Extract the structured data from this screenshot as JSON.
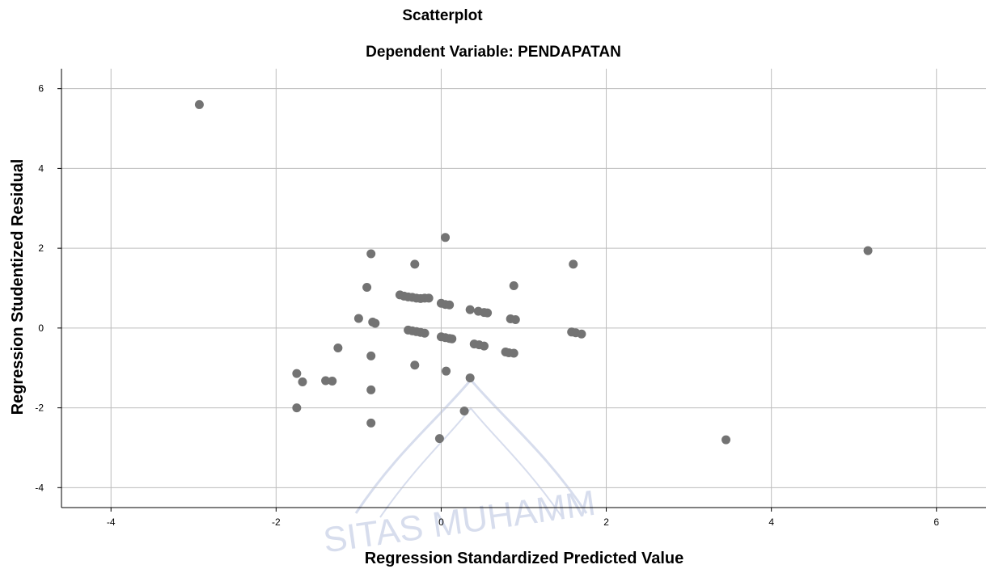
{
  "chart_data": {
    "type": "scatter",
    "title": "Scatterplot",
    "subtitle": "Dependent Variable: PENDAPATAN",
    "xlabel": "Regression Standardized Predicted Value",
    "ylabel": "Regression Studentized Residual",
    "xlim": [
      -4.6,
      6.6
    ],
    "ylim": [
      -4.5,
      6.5
    ],
    "xticks": [
      -4,
      -2,
      0,
      2,
      4,
      6
    ],
    "xtick_labels": [
      "-4",
      "-2",
      "0",
      "2",
      "4",
      "6"
    ],
    "yticks": [
      -4,
      -2,
      0,
      2,
      4,
      6
    ],
    "ytick_labels": [
      "-4",
      "-2",
      "0",
      "2",
      "4",
      "6"
    ],
    "grid": true,
    "legend": "none",
    "marker_color": "#737373",
    "grid_color": "#bdbdbd",
    "points": [
      {
        "x": -2.93,
        "y": 5.6
      },
      {
        "x": -0.85,
        "y": 1.86
      },
      {
        "x": -0.9,
        "y": 1.02
      },
      {
        "x": -1.0,
        "y": 0.24
      },
      {
        "x": -0.83,
        "y": 0.15
      },
      {
        "x": -0.8,
        "y": 0.12
      },
      {
        "x": -1.25,
        "y": -0.5
      },
      {
        "x": -0.85,
        "y": -0.7
      },
      {
        "x": -1.75,
        "y": -1.14
      },
      {
        "x": -1.68,
        "y": -1.35
      },
      {
        "x": -1.4,
        "y": -1.32
      },
      {
        "x": -1.32,
        "y": -1.33
      },
      {
        "x": -0.85,
        "y": -1.55
      },
      {
        "x": -1.75,
        "y": -2.0
      },
      {
        "x": -0.85,
        "y": -2.38
      },
      {
        "x": -0.5,
        "y": 0.83
      },
      {
        "x": -0.45,
        "y": 0.8
      },
      {
        "x": -0.4,
        "y": 0.78
      },
      {
        "x": -0.35,
        "y": 0.77
      },
      {
        "x": -0.3,
        "y": 0.75
      },
      {
        "x": -0.25,
        "y": 0.74
      },
      {
        "x": -0.2,
        "y": 0.75
      },
      {
        "x": -0.15,
        "y": 0.75
      },
      {
        "x": -0.32,
        "y": 1.6
      },
      {
        "x": -0.4,
        "y": -0.05
      },
      {
        "x": -0.35,
        "y": -0.07
      },
      {
        "x": -0.3,
        "y": -0.09
      },
      {
        "x": -0.25,
        "y": -0.11
      },
      {
        "x": -0.2,
        "y": -0.13
      },
      {
        "x": -0.32,
        "y": -0.93
      },
      {
        "x": 0.05,
        "y": 2.27
      },
      {
        "x": 0.0,
        "y": 0.62
      },
      {
        "x": 0.05,
        "y": 0.59
      },
      {
        "x": 0.1,
        "y": 0.58
      },
      {
        "x": 0.0,
        "y": -0.22
      },
      {
        "x": 0.05,
        "y": -0.24
      },
      {
        "x": 0.1,
        "y": -0.26
      },
      {
        "x": 0.13,
        "y": -0.27
      },
      {
        "x": 0.06,
        "y": -1.08
      },
      {
        "x": -0.02,
        "y": -2.77
      },
      {
        "x": 0.28,
        "y": -2.08
      },
      {
        "x": 0.35,
        "y": -1.25
      },
      {
        "x": 0.35,
        "y": 0.46
      },
      {
        "x": 0.45,
        "y": 0.42
      },
      {
        "x": 0.52,
        "y": 0.39
      },
      {
        "x": 0.56,
        "y": 0.38
      },
      {
        "x": 0.4,
        "y": -0.4
      },
      {
        "x": 0.46,
        "y": -0.42
      },
      {
        "x": 0.52,
        "y": -0.45
      },
      {
        "x": 0.78,
        "y": -0.6
      },
      {
        "x": 0.82,
        "y": -0.62
      },
      {
        "x": 0.88,
        "y": -0.63
      },
      {
        "x": 0.88,
        "y": 1.06
      },
      {
        "x": 0.84,
        "y": 0.23
      },
      {
        "x": 0.9,
        "y": 0.21
      },
      {
        "x": 1.6,
        "y": 1.6
      },
      {
        "x": 1.58,
        "y": -0.1
      },
      {
        "x": 1.63,
        "y": -0.12
      },
      {
        "x": 1.7,
        "y": -0.15
      },
      {
        "x": 3.45,
        "y": -2.8
      },
      {
        "x": 5.17,
        "y": 1.94
      }
    ]
  },
  "watermark": {
    "text": "SITAS MUHAMM",
    "color": "#8f9fcc"
  }
}
